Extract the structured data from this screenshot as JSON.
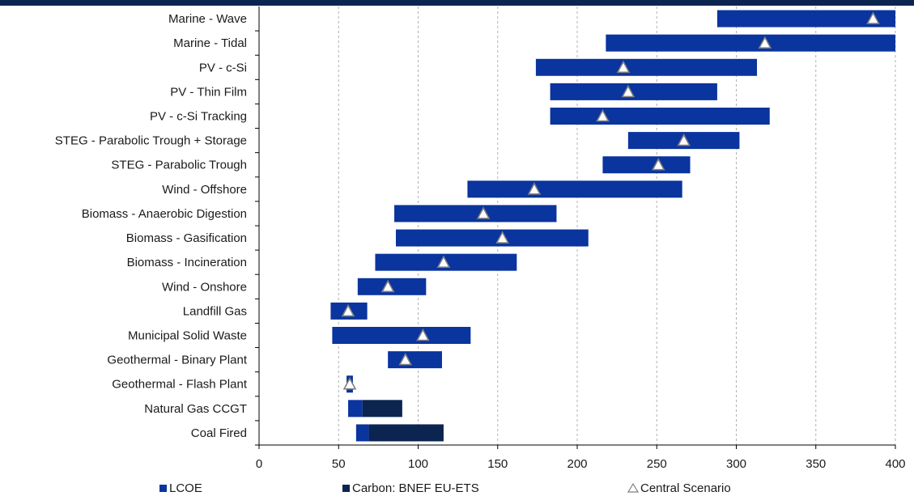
{
  "colors": {
    "lcoe": "#0a349e",
    "carbon": "#0b2450",
    "marker_fill": "#ffffff",
    "marker_stroke": "#7f7f7f",
    "grid": "#b0b0b0"
  },
  "chart_data": {
    "type": "bar",
    "orientation": "horizontal-range",
    "categories": [
      "Marine - Wave",
      "Marine - Tidal",
      "PV - c-Si",
      "PV - Thin Film",
      "PV - c-Si Tracking",
      "STEG - Parabolic Trough + Storage",
      "STEG - Parabolic Trough",
      "Wind - Offshore",
      "Biomass - Anaerobic Digestion",
      "Biomass - Gasification",
      "Biomass - Incineration",
      "Wind - Onshore",
      "Landfill Gas",
      "Municipal Solid Waste",
      "Geothermal - Binary Plant",
      "Geothermal - Flash Plant",
      "Natural Gas CCGT",
      "Coal Fired"
    ],
    "series": [
      {
        "name": "LCOE",
        "ranges": [
          [
            288,
            400
          ],
          [
            218,
            400
          ],
          [
            174,
            313
          ],
          [
            183,
            288
          ],
          [
            183,
            321
          ],
          [
            232,
            302
          ],
          [
            216,
            271
          ],
          [
            131,
            266
          ],
          [
            85,
            187
          ],
          [
            86,
            207
          ],
          [
            73,
            162
          ],
          [
            62,
            105
          ],
          [
            45,
            68
          ],
          [
            46,
            133
          ],
          [
            81,
            115
          ],
          [
            55,
            59
          ],
          [
            56,
            65
          ],
          [
            61,
            69
          ]
        ]
      },
      {
        "name": "Carbon: BNEF EU-ETS",
        "ranges": [
          null,
          null,
          null,
          null,
          null,
          null,
          null,
          null,
          null,
          null,
          null,
          null,
          null,
          null,
          null,
          null,
          [
            65,
            90
          ],
          [
            69,
            116
          ]
        ]
      },
      {
        "name": "Central Scenario",
        "values": [
          386,
          318,
          229,
          232,
          216,
          267,
          251,
          173,
          141,
          153,
          116,
          81,
          56,
          103,
          92,
          57,
          null,
          null
        ]
      }
    ],
    "xlim": [
      0,
      400
    ],
    "xticks": [
      "0",
      "50",
      "100",
      "150",
      "200",
      "250",
      "300",
      "350",
      "400"
    ],
    "xlabel": "",
    "ylabel": "",
    "title": "",
    "grid": "vertical dashed",
    "legend_position": "bottom"
  }
}
